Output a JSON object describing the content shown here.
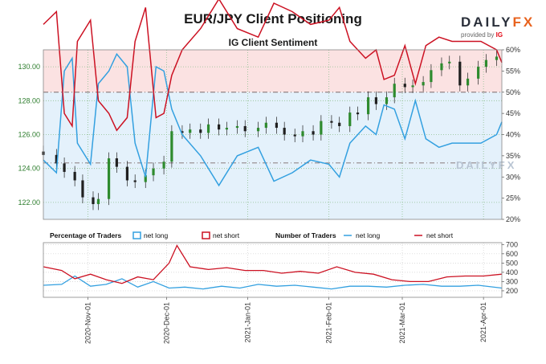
{
  "header": {
    "title": "EUR/JPY Client Positioning",
    "subtitle": "IG Client Sentiment",
    "logo_word_a": "DAILY",
    "logo_word_b": "FX",
    "logo_sub": "provided by",
    "logo_ig": "IG",
    "watermark": "DAILYFX"
  },
  "colors": {
    "net_long": "#33a0e0",
    "net_short": "#cc1122",
    "candle_up": "#2e8b2e",
    "candle_down": "#202020",
    "upper_shade": "#fbe2e2",
    "lower_shade": "#e4f1fb",
    "price_axis": "#2d7d2d"
  },
  "legend": {
    "pct_title": "Percentage of Traders",
    "pct_long": "net long",
    "pct_short": "net short",
    "num_title": "Number of Traders",
    "num_long": "net long",
    "num_short": "net short"
  },
  "chart_data": [
    {
      "type": "line",
      "panel": "top",
      "left_axis_ticks": [
        "130.00",
        "128.00",
        "126.00",
        "124.00",
        "122.00"
      ],
      "right_axis_ticks": [
        "60%",
        "55%",
        "50%",
        "45%",
        "40%",
        "35%",
        "30%",
        "25%",
        "20%"
      ],
      "left_ylim": [
        121.0,
        131.0
      ],
      "right_ylim": [
        20,
        60
      ],
      "reference_lines": [
        50,
        33.3
      ],
      "x_range": [
        "2020-10-15",
        "2021-04-08"
      ],
      "price_candles_close": [
        [
          "2020-10-15",
          124.8
        ],
        [
          "2020-10-20",
          124.3
        ],
        [
          "2020-10-23",
          123.8
        ],
        [
          "2020-10-27",
          123.3
        ],
        [
          "2020-10-30",
          122.3
        ],
        [
          "2020-11-03",
          121.9
        ],
        [
          "2020-11-05",
          122.2
        ],
        [
          "2020-11-09",
          124.6
        ],
        [
          "2020-11-12",
          124.1
        ],
        [
          "2020-11-16",
          123.3
        ],
        [
          "2020-11-19",
          123.2
        ],
        [
          "2020-11-23",
          123.6
        ],
        [
          "2020-11-26",
          124.0
        ],
        [
          "2020-11-30",
          124.4
        ],
        [
          "2020-12-03",
          126.2
        ],
        [
          "2020-12-07",
          126.1
        ],
        [
          "2020-12-10",
          126.3
        ],
        [
          "2020-12-14",
          126.1
        ],
        [
          "2020-12-17",
          126.6
        ],
        [
          "2020-12-21",
          126.3
        ],
        [
          "2020-12-24",
          126.4
        ],
        [
          "2020-12-28",
          126.5
        ],
        [
          "2020-12-31",
          126.2
        ],
        [
          "2021-01-05",
          126.4
        ],
        [
          "2021-01-08",
          126.7
        ],
        [
          "2021-01-12",
          126.4
        ],
        [
          "2021-01-15",
          126.0
        ],
        [
          "2021-01-19",
          125.9
        ],
        [
          "2021-01-22",
          126.2
        ],
        [
          "2021-01-26",
          126.0
        ],
        [
          "2021-01-29",
          126.8
        ],
        [
          "2021-02-02",
          126.7
        ],
        [
          "2021-02-05",
          126.5
        ],
        [
          "2021-02-09",
          127.3
        ],
        [
          "2021-02-12",
          127.2
        ],
        [
          "2021-02-16",
          128.2
        ],
        [
          "2021-02-19",
          127.8
        ],
        [
          "2021-02-23",
          128.2
        ],
        [
          "2021-02-26",
          129.0
        ],
        [
          "2021-03-02",
          128.8
        ],
        [
          "2021-03-05",
          128.9
        ],
        [
          "2021-03-09",
          129.1
        ],
        [
          "2021-03-12",
          129.8
        ],
        [
          "2021-03-16",
          130.2
        ],
        [
          "2021-03-19",
          130.3
        ],
        [
          "2021-03-23",
          128.9
        ],
        [
          "2021-03-26",
          129.3
        ],
        [
          "2021-03-30",
          130.0
        ],
        [
          "2021-04-02",
          130.4
        ],
        [
          "2021-04-06",
          130.6
        ]
      ],
      "series": [
        {
          "name": "net long",
          "values": [
            [
              "2020-10-15",
              34
            ],
            [
              "2020-10-20",
              31
            ],
            [
              "2020-10-23",
              55
            ],
            [
              "2020-10-26",
              58
            ],
            [
              "2020-10-28",
              38
            ],
            [
              "2020-11-02",
              33
            ],
            [
              "2020-11-05",
              52
            ],
            [
              "2020-11-09",
              55
            ],
            [
              "2020-11-12",
              59
            ],
            [
              "2020-11-16",
              56
            ],
            [
              "2020-11-19",
              38
            ],
            [
              "2020-11-23",
              30
            ],
            [
              "2020-11-27",
              56
            ],
            [
              "2020-11-30",
              55
            ],
            [
              "2020-12-03",
              46
            ],
            [
              "2020-12-07",
              40
            ],
            [
              "2020-12-14",
              35
            ],
            [
              "2020-12-21",
              28
            ],
            [
              "2020-12-28",
              35
            ],
            [
              "2021-01-05",
              37
            ],
            [
              "2021-01-11",
              29
            ],
            [
              "2021-01-18",
              31
            ],
            [
              "2021-01-25",
              34
            ],
            [
              "2021-02-01",
              33
            ],
            [
              "2021-02-05",
              30
            ],
            [
              "2021-02-09",
              38
            ],
            [
              "2021-02-15",
              42
            ],
            [
              "2021-02-19",
              40
            ],
            [
              "2021-02-22",
              47
            ],
            [
              "2021-02-26",
              46
            ],
            [
              "2021-03-02",
              39
            ],
            [
              "2021-03-06",
              48
            ],
            [
              "2021-03-10",
              39
            ],
            [
              "2021-03-15",
              37
            ],
            [
              "2021-03-20",
              38
            ],
            [
              "2021-03-25",
              38
            ],
            [
              "2021-03-31",
              38
            ],
            [
              "2021-04-06",
              40
            ],
            [
              "2021-04-08",
              43
            ]
          ]
        },
        {
          "name": "net short",
          "values": [
            [
              "2020-10-15",
              66
            ],
            [
              "2020-10-20",
              69
            ],
            [
              "2020-10-23",
              45
            ],
            [
              "2020-10-26",
              42
            ],
            [
              "2020-10-28",
              62
            ],
            [
              "2020-11-02",
              67
            ],
            [
              "2020-11-05",
              48
            ],
            [
              "2020-11-09",
              45
            ],
            [
              "2020-11-12",
              41
            ],
            [
              "2020-11-16",
              44
            ],
            [
              "2020-11-19",
              62
            ],
            [
              "2020-11-23",
              70
            ],
            [
              "2020-11-27",
              44
            ],
            [
              "2020-11-30",
              45
            ],
            [
              "2020-12-03",
              54
            ],
            [
              "2020-12-07",
              60
            ],
            [
              "2020-12-14",
              65
            ],
            [
              "2020-12-21",
              72
            ],
            [
              "2020-12-28",
              65
            ],
            [
              "2021-01-05",
              63
            ],
            [
              "2021-01-11",
              71
            ],
            [
              "2021-01-18",
              69
            ],
            [
              "2021-01-25",
              66
            ],
            [
              "2021-02-01",
              67
            ],
            [
              "2021-02-05",
              70
            ],
            [
              "2021-02-09",
              62
            ],
            [
              "2021-02-15",
              58
            ],
            [
              "2021-02-19",
              60
            ],
            [
              "2021-02-22",
              53
            ],
            [
              "2021-02-26",
              54
            ],
            [
              "2021-03-02",
              61
            ],
            [
              "2021-03-06",
              52
            ],
            [
              "2021-03-10",
              61
            ],
            [
              "2021-03-15",
              63
            ],
            [
              "2021-03-20",
              62
            ],
            [
              "2021-03-25",
              62
            ],
            [
              "2021-03-31",
              62
            ],
            [
              "2021-04-06",
              60
            ],
            [
              "2021-04-08",
              57
            ]
          ]
        }
      ]
    },
    {
      "type": "line",
      "panel": "bottom",
      "right_axis_ticks": [
        "700",
        "600",
        "500",
        "400",
        "300",
        "200"
      ],
      "ylim": [
        130,
        720
      ],
      "x_ticks": [
        "2020-Nov-01",
        "2020-Dec-01",
        "2021-Jan-01",
        "2021-Feb-01",
        "2021-Mar-01",
        "2021-Apr-01"
      ],
      "x_tick_dates": [
        "2020-11-01",
        "2020-12-01",
        "2021-01-01",
        "2021-02-01",
        "2021-03-01",
        "2021-04-01"
      ],
      "series": [
        {
          "name": "net long",
          "values": [
            [
              "2020-10-15",
              260
            ],
            [
              "2020-10-22",
              270
            ],
            [
              "2020-10-27",
              360
            ],
            [
              "2020-11-02",
              250
            ],
            [
              "2020-11-08",
              270
            ],
            [
              "2020-11-14",
              330
            ],
            [
              "2020-11-20",
              240
            ],
            [
              "2020-11-26",
              300
            ],
            [
              "2020-12-02",
              230
            ],
            [
              "2020-12-08",
              240
            ],
            [
              "2020-12-15",
              220
            ],
            [
              "2020-12-22",
              250
            ],
            [
              "2020-12-29",
              230
            ],
            [
              "2021-01-05",
              270
            ],
            [
              "2021-01-12",
              250
            ],
            [
              "2021-01-19",
              260
            ],
            [
              "2021-01-26",
              240
            ],
            [
              "2021-02-02",
              220
            ],
            [
              "2021-02-09",
              250
            ],
            [
              "2021-02-16",
              250
            ],
            [
              "2021-02-23",
              240
            ],
            [
              "2021-03-02",
              260
            ],
            [
              "2021-03-09",
              270
            ],
            [
              "2021-03-16",
              250
            ],
            [
              "2021-03-23",
              250
            ],
            [
              "2021-03-30",
              260
            ],
            [
              "2021-04-08",
              230
            ]
          ]
        },
        {
          "name": "net short",
          "values": [
            [
              "2020-10-15",
              460
            ],
            [
              "2020-10-22",
              420
            ],
            [
              "2020-10-27",
              330
            ],
            [
              "2020-11-02",
              380
            ],
            [
              "2020-11-08",
              320
            ],
            [
              "2020-11-14",
              280
            ],
            [
              "2020-11-20",
              350
            ],
            [
              "2020-11-26",
              320
            ],
            [
              "2020-12-02",
              500
            ],
            [
              "2020-12-05",
              690
            ],
            [
              "2020-12-10",
              460
            ],
            [
              "2020-12-17",
              430
            ],
            [
              "2020-12-24",
              450
            ],
            [
              "2020-12-31",
              420
            ],
            [
              "2021-01-07",
              420
            ],
            [
              "2021-01-14",
              390
            ],
            [
              "2021-01-21",
              410
            ],
            [
              "2021-01-28",
              390
            ],
            [
              "2021-02-04",
              460
            ],
            [
              "2021-02-11",
              400
            ],
            [
              "2021-02-18",
              380
            ],
            [
              "2021-02-25",
              320
            ],
            [
              "2021-03-04",
              300
            ],
            [
              "2021-03-11",
              300
            ],
            [
              "2021-03-18",
              350
            ],
            [
              "2021-03-25",
              360
            ],
            [
              "2021-04-01",
              360
            ],
            [
              "2021-04-08",
              380
            ]
          ]
        }
      ]
    }
  ]
}
